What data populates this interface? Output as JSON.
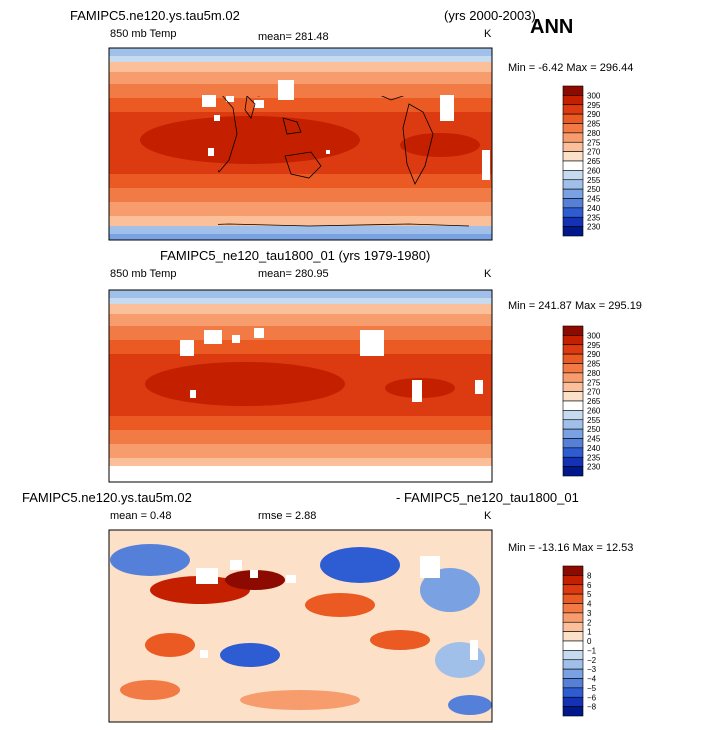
{
  "season": "ANN",
  "panels": [
    {
      "title_left": "FAMIPC5.ne120.ys.tau5m.02",
      "title_right": "(yrs 2000-2003)",
      "variable": "850 mb Temp",
      "mean_text": "mean= 281.48",
      "units": "K",
      "minmax_text": "Min =  -6.42  Max = 296.44"
    },
    {
      "title_center": "FAMIPC5_ne120_tau1800_01 (yrs 1979-1980)",
      "variable": "850 mb Temp",
      "mean_text": "mean= 280.95",
      "units": "K",
      "minmax_text": "Min = 241.87  Max = 295.19"
    },
    {
      "title_left": "FAMIPC5.ne120.ys.tau5m.02",
      "title_right": "- FAMIPC5_ne120_tau1800_01",
      "mean_text": "mean =    0.48",
      "rmse_text": "rmse =    2.88",
      "units": "K",
      "minmax_text": "Min = -13.16  Max =  12.53"
    }
  ],
  "chart_data": [
    {
      "type": "heatmap",
      "title": "FAMIPC5.ne120.ys.tau5m.02 (yrs 2000-2003)",
      "variable": "850 mb Temp",
      "units": "K",
      "mean": 281.48,
      "min": -6.42,
      "max": 296.44,
      "colorbar_levels": [
        "300",
        "295",
        "290",
        "285",
        "280",
        "275",
        "270",
        "265",
        "260",
        "255",
        "250",
        "245",
        "240",
        "235",
        "230"
      ],
      "colorbar_colors": [
        "#8c0a00",
        "#c42000",
        "#dc3a10",
        "#ea5a22",
        "#f27a44",
        "#f79c6c",
        "#fbbf9a",
        "#fde0c8",
        "#ffffff",
        "#c6daf0",
        "#a0c0ea",
        "#7aa2e2",
        "#5480da",
        "#2e5cd2",
        "#1432b4",
        "#00188a"
      ]
    },
    {
      "type": "heatmap",
      "title": "FAMIPC5_ne120_tau1800_01 (yrs 1979-1980)",
      "variable": "850 mb Temp",
      "units": "K",
      "mean": 280.95,
      "min": 241.87,
      "max": 295.19,
      "colorbar_levels": [
        "300",
        "295",
        "290",
        "285",
        "280",
        "275",
        "270",
        "265",
        "260",
        "255",
        "250",
        "245",
        "240",
        "235",
        "230"
      ],
      "colorbar_colors": [
        "#8c0a00",
        "#c42000",
        "#dc3a10",
        "#ea5a22",
        "#f27a44",
        "#f79c6c",
        "#fbbf9a",
        "#fde0c8",
        "#ffffff",
        "#c6daf0",
        "#a0c0ea",
        "#7aa2e2",
        "#5480da",
        "#2e5cd2",
        "#1432b4",
        "#00188a"
      ]
    },
    {
      "type": "heatmap",
      "title": "FAMIPC5.ne120.ys.tau5m.02 - FAMIPC5_ne120_tau1800_01",
      "units": "K",
      "mean": 0.48,
      "rmse": 2.88,
      "min": -13.16,
      "max": 12.53,
      "colorbar_levels": [
        "8",
        "6",
        "5",
        "4",
        "3",
        "2",
        "1",
        "0",
        "−1",
        "−2",
        "−3",
        "−4",
        "−5",
        "−6",
        "−8"
      ],
      "colorbar_colors": [
        "#8c0a00",
        "#c42000",
        "#dc3a10",
        "#ea5a22",
        "#f27a44",
        "#f79c6c",
        "#fbbf9a",
        "#fde0c8",
        "#ffffff",
        "#c6daf0",
        "#a0c0ea",
        "#7aa2e2",
        "#5480da",
        "#2e5cd2",
        "#1432b4",
        "#00188a"
      ]
    }
  ]
}
